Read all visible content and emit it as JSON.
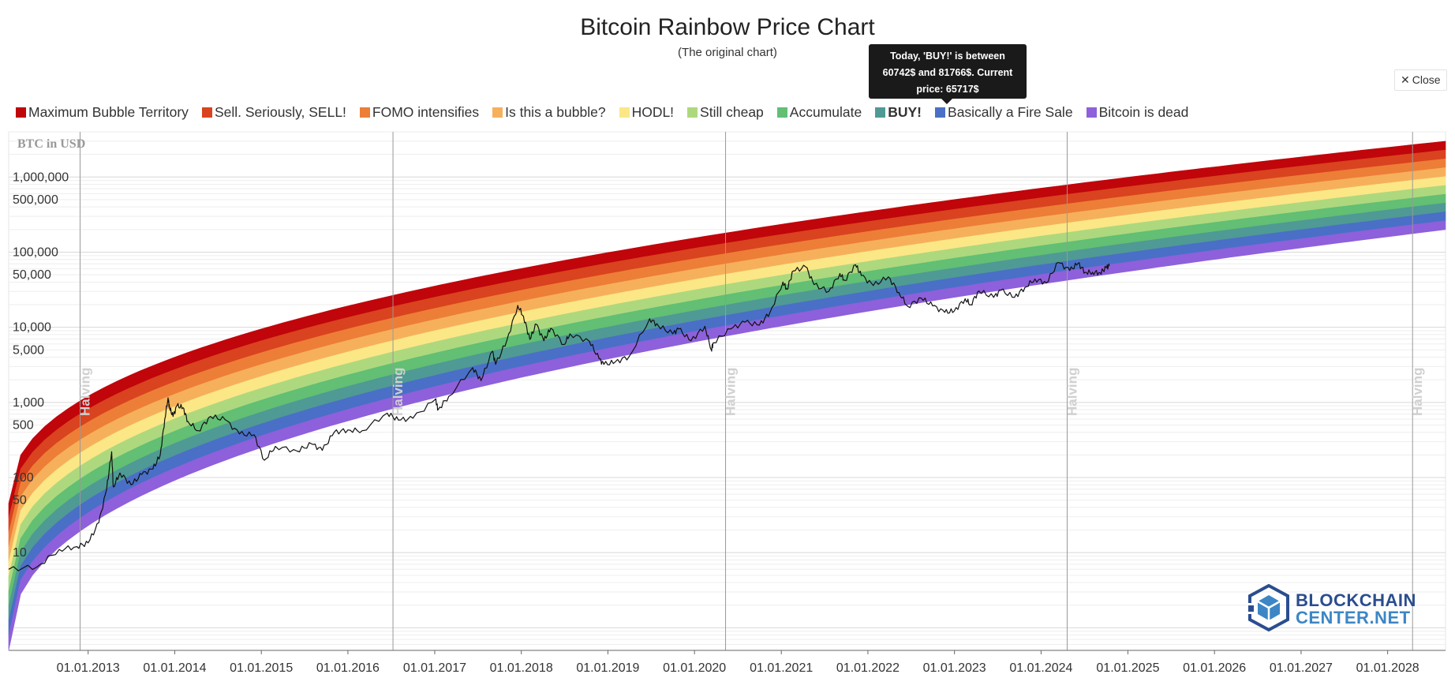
{
  "header": {
    "title": "Bitcoin Rainbow Price Chart",
    "subtitle": "(The original chart)"
  },
  "tooltip": {
    "line1": "Today, 'BUY!' is between",
    "line2": "60742$ and 81766$. Current",
    "line3": "price: 65717$"
  },
  "close_button": {
    "label": "Close",
    "icon": "close-icon"
  },
  "logo": {
    "line1": "BLOCKCHAIN",
    "line2": "CENTER.NET",
    "icon": "blockchain-cube-icon"
  },
  "chart_data": {
    "type": "area",
    "ylabel": "BTC in USD",
    "y_scale": "log",
    "ylim": [
      0.5,
      4000000
    ],
    "xlim": [
      "2012-02-01",
      "2028-09-01"
    ],
    "legend": {
      "placement": "top",
      "active": "BUY!"
    },
    "y_ticks": [
      "1,000,000",
      "500,000",
      "100,000",
      "50,000",
      "10,000",
      "5,000",
      "1,000",
      "500",
      "100",
      "50",
      "10"
    ],
    "y_tick_values": [
      1000000,
      500000,
      100000,
      50000,
      10000,
      5000,
      1000,
      500,
      100,
      50,
      10
    ],
    "x_ticks": [
      "01.01.2013",
      "01.01.2014",
      "01.01.2015",
      "01.01.2016",
      "01.01.2017",
      "01.01.2018",
      "01.01.2019",
      "01.01.2020",
      "01.01.2021",
      "01.01.2022",
      "01.01.2023",
      "01.01.2024",
      "01.01.2025",
      "01.01.2026",
      "01.01.2027",
      "01.01.2028"
    ],
    "halvings": {
      "label": "Halving",
      "dates": [
        "2012-11-28",
        "2016-07-09",
        "2020-05-11",
        "2024-04-20",
        "2028-04-15"
      ]
    },
    "bands": [
      {
        "name": "Maximum Bubble Territory",
        "color": "#c0050b"
      },
      {
        "name": "Sell. Seriously, SELL!",
        "color": "#d9431f"
      },
      {
        "name": "FOMO intensifies",
        "color": "#ed7e37"
      },
      {
        "name": "Is this a bubble?",
        "color": "#f6b05c"
      },
      {
        "name": "HODL!",
        "color": "#fbe786"
      },
      {
        "name": "Still cheap",
        "color": "#aed87e"
      },
      {
        "name": "Accumulate",
        "color": "#62bf74"
      },
      {
        "name": "BUY!",
        "color": "#4f9a94"
      },
      {
        "name": "Basically a Fire Sale",
        "color": "#4a6fc6"
      },
      {
        "name": "Bitcoin is dead",
        "color": "#8e60db"
      }
    ],
    "band_top_at_xlim": [
      45,
      3000000
    ],
    "band_bottom_at_xlim": [
      0.5,
      200000
    ],
    "price_series": {
      "name": "BTC price",
      "color": "#111111",
      "points": [
        [
          "2012-02-01",
          6
        ],
        [
          "2012-06-01",
          6.5
        ],
        [
          "2012-09-01",
          11
        ],
        [
          "2012-11-15",
          12
        ],
        [
          "2013-01-01",
          13.5
        ],
        [
          "2013-02-15",
          25
        ],
        [
          "2013-03-20",
          70
        ],
        [
          "2013-04-10",
          220
        ],
        [
          "2013-04-17",
          75
        ],
        [
          "2013-05-15",
          115
        ],
        [
          "2013-07-01",
          80
        ],
        [
          "2013-08-15",
          110
        ],
        [
          "2013-10-01",
          130
        ],
        [
          "2013-11-01",
          200
        ],
        [
          "2013-11-20",
          600
        ],
        [
          "2013-12-04",
          1150
        ],
        [
          "2013-12-10",
          850
        ],
        [
          "2013-12-25",
          650
        ],
        [
          "2014-01-10",
          900
        ],
        [
          "2014-02-05",
          850
        ],
        [
          "2014-02-25",
          560
        ],
        [
          "2014-04-10",
          420
        ],
        [
          "2014-06-01",
          650
        ],
        [
          "2014-08-01",
          590
        ],
        [
          "2014-10-01",
          380
        ],
        [
          "2014-12-01",
          370
        ],
        [
          "2015-01-14",
          170
        ],
        [
          "2015-03-01",
          260
        ],
        [
          "2015-06-01",
          225
        ],
        [
          "2015-08-01",
          280
        ],
        [
          "2015-09-15",
          230
        ],
        [
          "2015-11-04",
          400
        ],
        [
          "2016-01-01",
          430
        ],
        [
          "2016-03-01",
          420
        ],
        [
          "2016-06-15",
          720
        ],
        [
          "2016-08-01",
          580
        ],
        [
          "2016-10-01",
          615
        ],
        [
          "2017-01-04",
          1100
        ],
        [
          "2017-01-15",
          800
        ],
        [
          "2017-03-01",
          1200
        ],
        [
          "2017-06-10",
          2900
        ],
        [
          "2017-07-15",
          1950
        ],
        [
          "2017-09-01",
          4800
        ],
        [
          "2017-09-15",
          3200
        ],
        [
          "2017-11-01",
          6700
        ],
        [
          "2017-12-17",
          19500
        ],
        [
          "2018-01-10",
          14000
        ],
        [
          "2018-02-06",
          6900
        ],
        [
          "2018-03-05",
          11000
        ],
        [
          "2018-04-06",
          6600
        ],
        [
          "2018-05-05",
          9700
        ],
        [
          "2018-06-30",
          5900
        ],
        [
          "2018-07-25",
          8200
        ],
        [
          "2018-10-15",
          6500
        ],
        [
          "2018-11-25",
          3800
        ],
        [
          "2018-12-15",
          3200
        ],
        [
          "2019-02-01",
          3450
        ],
        [
          "2019-04-01",
          4100
        ],
        [
          "2019-06-26",
          13000
        ],
        [
          "2019-08-01",
          10500
        ],
        [
          "2019-10-01",
          8200
        ],
        [
          "2019-10-26",
          9500
        ],
        [
          "2019-12-17",
          6600
        ],
        [
          "2020-02-14",
          10300
        ],
        [
          "2020-03-12",
          5000
        ],
        [
          "2020-03-20",
          6200
        ],
        [
          "2020-06-01",
          9500
        ],
        [
          "2020-08-01",
          11700
        ],
        [
          "2020-10-01",
          10700
        ],
        [
          "2020-11-15",
          16000
        ],
        [
          "2021-01-08",
          40000
        ],
        [
          "2021-01-25",
          32000
        ],
        [
          "2021-02-20",
          56000
        ],
        [
          "2021-04-14",
          63500
        ],
        [
          "2021-05-19",
          37000
        ],
        [
          "2021-07-20",
          30000
        ],
        [
          "2021-09-05",
          52000
        ],
        [
          "2021-09-25",
          42000
        ],
        [
          "2021-11-10",
          68000
        ],
        [
          "2021-12-04",
          49000
        ],
        [
          "2022-01-24",
          36000
        ],
        [
          "2022-03-28",
          47000
        ],
        [
          "2022-05-12",
          29000
        ],
        [
          "2022-06-18",
          19000
        ],
        [
          "2022-08-14",
          24500
        ],
        [
          "2022-10-01",
          19300
        ],
        [
          "2022-11-21",
          15800
        ],
        [
          "2022-12-31",
          16500
        ],
        [
          "2023-02-15",
          24000
        ],
        [
          "2023-03-10",
          20000
        ],
        [
          "2023-04-14",
          30500
        ],
        [
          "2023-06-15",
          25000
        ],
        [
          "2023-07-15",
          31000
        ],
        [
          "2023-09-11",
          25000
        ],
        [
          "2023-10-25",
          34000
        ],
        [
          "2023-12-06",
          44000
        ],
        [
          "2024-01-23",
          39000
        ],
        [
          "2024-03-14",
          73000
        ],
        [
          "2024-05-01",
          57000
        ],
        [
          "2024-06-05",
          71000
        ],
        [
          "2024-07-05",
          54000
        ],
        [
          "2024-08-05",
          54000
        ],
        [
          "2024-09-06",
          53000
        ],
        [
          "2024-10-01",
          62000
        ],
        [
          "2024-10-15",
          65717
        ]
      ]
    }
  }
}
